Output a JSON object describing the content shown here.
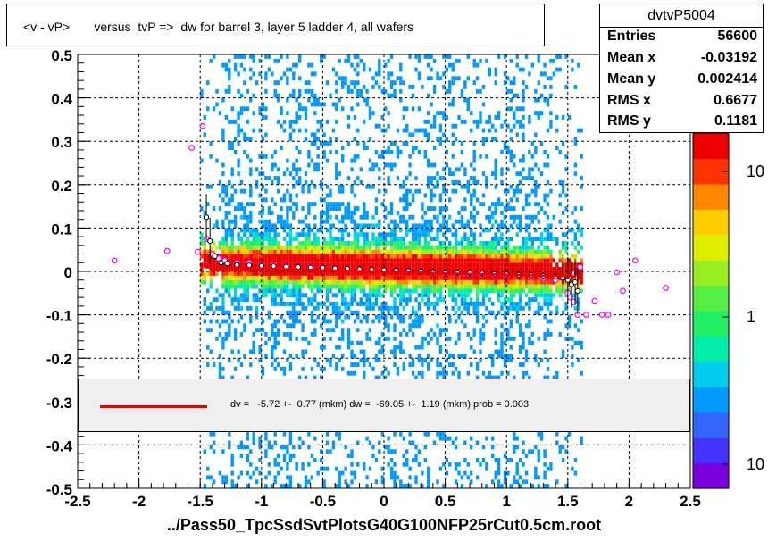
{
  "title": "<v - vP>       versus  tvP =>  dw for barrel 3, layer 5 ladder 4, all wafers",
  "x_axis_title": "../Pass50_TpcSsdSvtPlotsG40G100NFP25rCut0.5cm.root",
  "stats": {
    "name": "dvtvP5004",
    "rows": [
      {
        "label": "Entries",
        "value": "56600"
      },
      {
        "label": "Mean x",
        "value": "-0.03192"
      },
      {
        "label": "Mean y",
        "value": "0.002414"
      },
      {
        "label": "RMS x",
        "value": "0.6677"
      },
      {
        "label": "RMS y",
        "value": "0.1181"
      }
    ]
  },
  "fit_legend": "dv =   -5.72 +-  0.77 (mkm) dw =  -69.05 +-  1.19 (mkm) prob = 0.003",
  "colorbar_labels": [
    "10",
    "1",
    "10"
  ],
  "colors": {
    "fit_line": "#ee0000",
    "profile_marker": "#ff00ff"
  },
  "chart_data": {
    "type": "heatmap",
    "xlim": [
      -2.5,
      2.5
    ],
    "ylim": [
      -0.5,
      0.5
    ],
    "grid": true,
    "x_ticks": [
      "-2.5",
      "-2",
      "-1.5",
      "-1",
      "-0.5",
      "0",
      "0.5",
      "1",
      "1.5",
      "2",
      "2.5"
    ],
    "y_ticks": [
      "-0.5",
      "-0.4",
      "-0.3",
      "-0.2",
      "-0.1",
      "0",
      "0.1",
      "0.2",
      "0.3",
      "0.4",
      "0.5"
    ],
    "fit_line": {
      "x": [
        -1.47,
        1.57
      ],
      "y": [
        0.0095,
        -0.0115
      ]
    },
    "profile_black": {
      "x": [
        -1.45,
        -1.42,
        -1.38,
        -1.33,
        -1.28,
        -1.2,
        -1.1,
        -1.0,
        -0.9,
        -0.8,
        -0.7,
        -0.6,
        -0.5,
        -0.4,
        -0.3,
        -0.2,
        -0.1,
        0.0,
        0.1,
        0.2,
        0.3,
        0.4,
        0.5,
        0.6,
        0.7,
        0.8,
        0.9,
        1.0,
        1.1,
        1.2,
        1.3,
        1.4,
        1.46,
        1.5,
        1.53,
        1.56,
        1.58
      ],
      "y": [
        0.125,
        0.07,
        0.035,
        0.02,
        0.018,
        0.015,
        0.014,
        0.013,
        0.012,
        0.011,
        0.01,
        0.009,
        0.008,
        0.007,
        0.006,
        0.005,
        0.004,
        0.003,
        0.002,
        0.001,
        0.0,
        -0.001,
        -0.002,
        -0.003,
        -0.004,
        -0.005,
        -0.006,
        -0.007,
        -0.008,
        -0.009,
        -0.01,
        -0.012,
        -0.015,
        -0.02,
        -0.03,
        -0.025,
        -0.045
      ]
    },
    "profile_magenta": {
      "x": [
        -2.2,
        -1.77,
        -1.57,
        -1.52,
        -1.48,
        -1.45,
        -1.4,
        -1.35,
        -1.3,
        -1.2,
        -1.1,
        -1.0,
        -0.9,
        -0.8,
        -0.7,
        -0.6,
        -0.5,
        -0.4,
        -0.3,
        -0.2,
        -0.1,
        0.0,
        0.1,
        0.2,
        0.3,
        0.4,
        0.5,
        0.6,
        0.7,
        0.8,
        0.9,
        1.0,
        1.1,
        1.2,
        1.3,
        1.4,
        1.5,
        1.52,
        1.55,
        1.58,
        1.6,
        1.65,
        1.72,
        1.78,
        1.83,
        1.9,
        1.95,
        2.05,
        2.3
      ],
      "y": [
        0.025,
        0.047,
        0.285,
        0.045,
        0.335,
        0.075,
        0.04,
        0.03,
        0.025,
        0.02,
        0.02,
        0.015,
        0.015,
        0.012,
        0.01,
        0.01,
        0.008,
        0.007,
        0.006,
        0.005,
        0.004,
        0.003,
        0.002,
        0.001,
        0.0,
        -0.002,
        -0.004,
        -0.005,
        -0.006,
        -0.007,
        -0.008,
        -0.009,
        -0.01,
        -0.012,
        -0.015,
        -0.02,
        -0.05,
        -0.06,
        -0.07,
        -0.1,
        0.01,
        -0.1,
        -0.068,
        -0.1,
        -0.1,
        -0.002,
        -0.045,
        0.025,
        -0.038
      ]
    }
  }
}
